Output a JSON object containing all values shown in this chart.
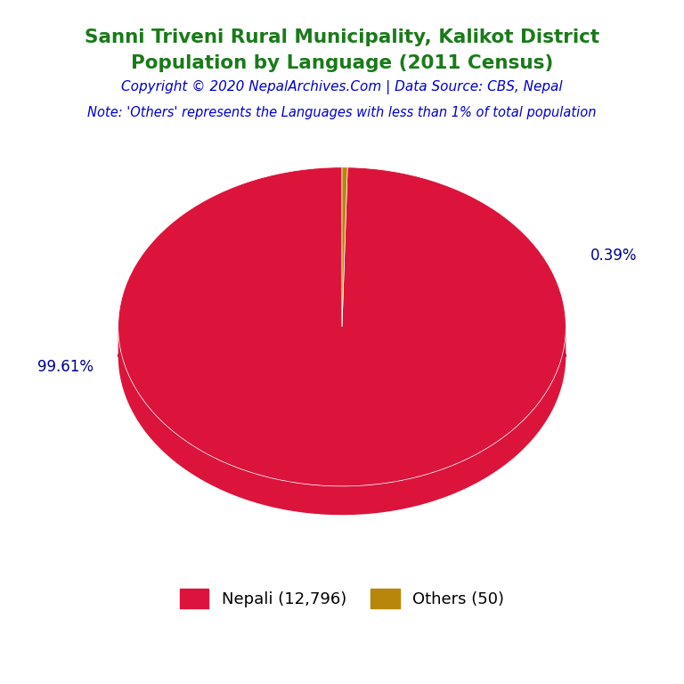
{
  "title_line1": "Sanni Triveni Rural Municipality, Kalikot District",
  "title_line2": "Population by Language (2011 Census)",
  "title_color": "#1a7a1a",
  "copyright_text": "Copyright © 2020 NepalArchives.Com | Data Source: CBS, Nepal",
  "copyright_color": "#0000cd",
  "note_text": "Note: 'Others' represents the Languages with less than 1% of total population",
  "note_color": "#0000cd",
  "slices": [
    {
      "label": "Nepali (12,796)",
      "value": 12796,
      "pct": 99.61,
      "color": "#dc143c"
    },
    {
      "label": "Others (50)",
      "value": 50,
      "pct": 0.39,
      "color": "#b8860b"
    }
  ],
  "pct_label_color": "#00008b",
  "background_color": "#ffffff",
  "shadow_color": "#8b0000",
  "edge_color": "#ffffff"
}
